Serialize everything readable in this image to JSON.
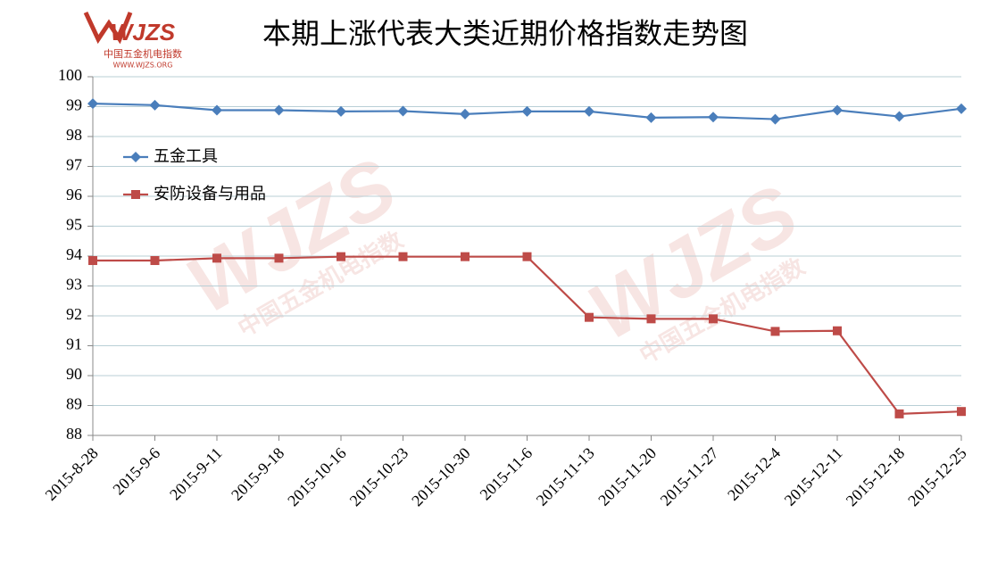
{
  "chart_data": {
    "type": "line",
    "title": "本期上涨代表大类近期价格指数走势图",
    "logo": {
      "mark": "WJZS",
      "name": "中国五金机电指数",
      "url": "WWW.WJZS.ORG"
    },
    "categories": [
      "2015-8-28",
      "2015-9-6",
      "2015-9-11",
      "2015-9-18",
      "2015-10-16",
      "2015-10-23",
      "2015-10-30",
      "2015-11-6",
      "2015-11-13",
      "2015-11-20",
      "2015-11-27",
      "2015-12-4",
      "2015-12-11",
      "2015-12-18",
      "2015-12-25"
    ],
    "series": [
      {
        "name": "五金工具",
        "color": "#4a7ebb",
        "marker": "diamond",
        "values": [
          99.1,
          99.05,
          98.88,
          98.88,
          98.84,
          98.85,
          98.75,
          98.84,
          98.84,
          98.63,
          98.65,
          98.58,
          98.88,
          98.67,
          98.93
        ]
      },
      {
        "name": "安防设备与用品",
        "color": "#be4b48",
        "marker": "square",
        "values": [
          93.85,
          93.85,
          93.93,
          93.93,
          93.98,
          93.98,
          93.98,
          93.98,
          91.95,
          91.9,
          91.9,
          91.48,
          91.5,
          88.72,
          88.8
        ]
      }
    ],
    "ylim": [
      88,
      100
    ],
    "yticks": [
      88,
      89,
      90,
      91,
      92,
      93,
      94,
      95,
      96,
      97,
      98,
      99,
      100
    ],
    "grid": true
  }
}
